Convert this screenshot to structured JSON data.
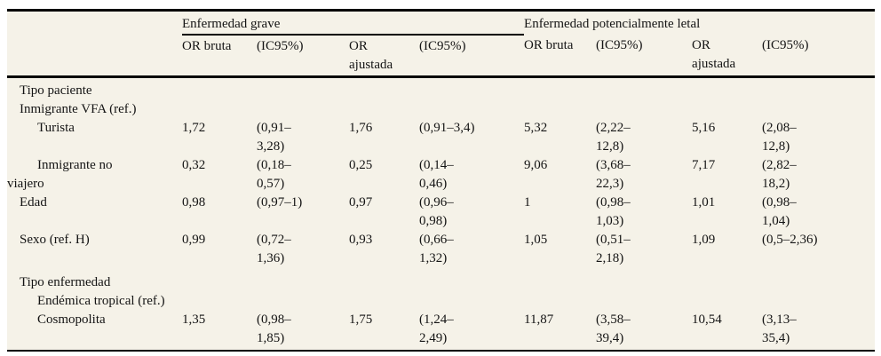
{
  "table": {
    "groups": [
      "Enfermedad grave",
      "Enfermedad potencialmente letal"
    ],
    "cols": [
      "OR bruta",
      "(IC95%)",
      "OR\najustada",
      "(IC95%)",
      "OR bruta",
      "(IC95%)",
      "OR\najustada",
      "(IC95%)"
    ],
    "rows": [
      {
        "label": "Tipo paciente",
        "values": [
          "",
          "",
          "",
          "",
          "",
          "",
          "",
          ""
        ]
      },
      {
        "label": "Inmigrante VFA (ref.)",
        "values": [
          "",
          "",
          "",
          "",
          "",
          "",
          "",
          ""
        ]
      },
      {
        "label": "Turista",
        "values": [
          "1,72",
          "(0,91–\n3,28)",
          "1,76",
          "(0,91–3,4)",
          "5,32",
          "(2,22–\n12,8)",
          "5,16",
          "(2,08–\n12,8)"
        ]
      },
      {
        "label": "Inmigrante no\nviajero",
        "values": [
          "0,32",
          "(0,18–\n0,57)",
          "0,25",
          "(0,14–\n0,46)",
          "9,06",
          "(3,68–\n22,3)",
          "7,17",
          "(2,82–\n18,2)"
        ]
      },
      {
        "label": "Edad",
        "values": [
          "0,98",
          "(0,97–1)",
          "0,97",
          "(0,96–\n0,98)",
          "1",
          "(0,98–\n1,03)",
          "1,01",
          "(0,98–\n1,04)"
        ]
      },
      {
        "label": "Sexo (ref. H)",
        "values": [
          "0,99",
          "(0,72–\n1,36)",
          "0,93",
          "(0,66–\n1,32)",
          "1,05",
          "(0,51–\n2,18)",
          "1,09",
          "(0,5–2,36)"
        ]
      },
      {
        "label": "Tipo enfermedad",
        "values": [
          "",
          "",
          "",
          "",
          "",
          "",
          "",
          ""
        ]
      },
      {
        "label": "Endémica tropical (ref.)",
        "values": [
          "",
          "",
          "",
          "",
          "",
          "",
          "",
          ""
        ]
      },
      {
        "label": "Cosmopolita",
        "values": [
          "1,35",
          "(0,98–\n1,85)",
          "1,75",
          "(1,24–\n2,49)",
          "11,87",
          "(3,58–\n39,4)",
          "10,54",
          "(3,13–\n35,4)"
        ]
      }
    ],
    "colors": {
      "panel_background": "#f5f2e8",
      "rule": "#000000",
      "text": "#141414"
    }
  }
}
